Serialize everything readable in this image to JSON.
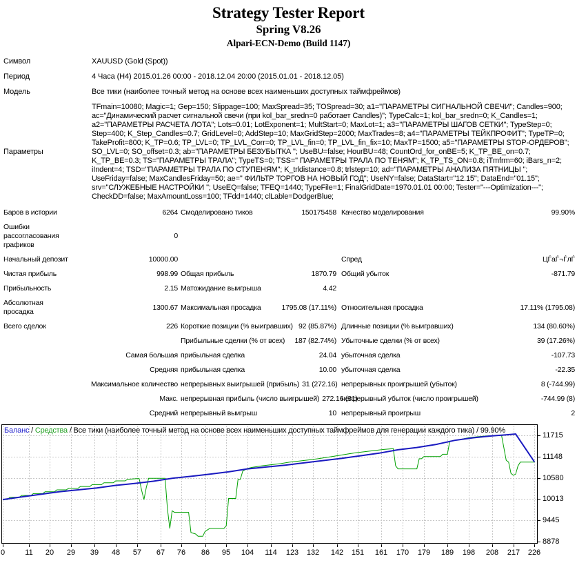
{
  "header": {
    "title": "Strategy Tester Report",
    "subtitle": "Spring V8.26",
    "server": "Alpari-ECN-Demo (Build 1147)"
  },
  "info_rows": [
    {
      "label": "Символ",
      "value": "XAUUSD (Gold (Spot))",
      "tall": false
    },
    {
      "label": "Период",
      "value": "4 Часа (H4) 2015.01.26 00:00 - 2018.12.04 20:00 (2015.01.01 - 2018.12.05)",
      "tall": false
    },
    {
      "label": "Модель",
      "value": "Все тики (наиболее точный метод на основе всех наименьших доступных таймфреймов)",
      "tall": false
    },
    {
      "label": "Параметры",
      "value": "TFmain=10080; Magic=1; Gep=150; Slippage=100; MaxSpread=35; TOSpread=30; a1=\"ПАРАМЕТРЫ СИГНАЛЬНОЙ СВЕЧИ\"; Candles=900; ac=\"Динамический расчет сигнальной свечи (при kol_bar_sredn=0 работает Candles)\"; TypeCalc=1; kol_bar_sredn=0; K_Candles=1; a2=\"ПАРАМЕТРЫ РАСЧЕТА ЛОТА\"; Lots=0.01; LotExponent=1; MultStart=0; MaxLot=1; a3=\"ПАРАМЕТРЫ ШАГОВ СЕТКИ\"; TypeStep=0; Step=400; K_Step_Candles=0.7; GridLevel=0; AddStep=10; MaxGridStep=2000; MaxTrades=8; a4=\"ПАРАМЕТРЫ ТЕЙКПРОФИТ\"; TypeTP=0; TakeProfit=800; K_TP=0.6; TP_LVL=0; TP_LVL_Corr=0; TP_LVL_fin=0; TP_LVL_fin_fix=10; MaxTP=1500; a5=\"ПАРАМЕТРЫ STOP-ОРДЕРОВ\"; SO_LVL=0; SO_offset=0.3; ab=\"ПАРАМЕТРЫ БЕЗУБЫТКА \"; UseBU=false; HourBU=48; CountOrd_for_onBE=5; K_TP_BE_on=0.7; K_TP_BE=0.3; TS=\"ПАРАМЕТРЫ ТРАЛА\"; TypeTS=0; TSS=\" ПАРАМЕТРЫ ТРАЛА ПО ТЕНЯМ\"; K_TP_TS_ON=0.8; iTmfrm=60; iBars_n=2; iIndent=4; TSD=\"ПАРАМЕТРЫ ТРАЛА ПО СТУПЕНЯМ\"; K_trldistance=0.8; trlstep=10; ad=\"ПАРАМЕТРЫ АНАЛИЗА ПЯТНИЦЫ \"; UseFriday=false; MaxCandlesFriday=50; ae=\" ФИЛЬТР ТОРГОВ НА НОВЫЙ ГОД\"; UseNY=false; DataStart=\"12.15\"; DataEnd=\"01.15\"; srv=\"СЛУЖЕБНЫЕ НАСТРОЙКИ \"; UseEQ=false; TFEQ=1440; TypeFile=1; FinalGridDate=1970.01.01 00:00; Tester=\"---Optimization---\"; CheckDD=false; MaxAmountLoss=100; TFdd=1440; clLable=DodgerBlue;",
      "tall": true
    }
  ],
  "stats_rows": [
    {
      "c1": "Баров в истории",
      "c2": "6264",
      "c3": "Смоделировано тиков",
      "c4": "150175458",
      "c5": "Качество моделирования",
      "c6": "99.90%",
      "wide_label": false
    },
    {
      "c1": "Ошибки рассогласования графиков",
      "c2": "0",
      "c3": "",
      "c4": "",
      "c5": "",
      "c6": "",
      "wide_label": false
    },
    {
      "c1": "Начальный депозит",
      "c2": "10000.00",
      "c3": "",
      "c4": "",
      "c5": "Спред",
      "c6": "ЦЃаЃ¬ЃлЃ",
      "wide_label": false
    },
    {
      "c1": "Чистая прибыль",
      "c2": "998.99",
      "c3": "Общая прибыль",
      "c4": "1870.79",
      "c5": "Общий убыток",
      "c6": "-871.79",
      "wide_label": false
    },
    {
      "c1": "Прибыльность",
      "c2": "2.15",
      "c3": "Матожидание выигрыша",
      "c4": "4.42",
      "c5": "",
      "c6": "",
      "wide_label": false
    },
    {
      "c1": "Абсолютная просадка",
      "c2": "1300.67",
      "c3": "Максимальная просадка",
      "c4": "1795.08 (17.11%)",
      "c5": "Относительная просадка",
      "c6": "17.11% (1795.08)",
      "wide_label": false
    },
    {
      "c1": "Всего сделок",
      "c2": "226",
      "c3": "Короткие позиции (% выигравших)",
      "c4": "92 (85.87%)",
      "c5": "Длинные позиции (% выигравших)",
      "c6": "134 (80.60%)",
      "wide_label": false
    },
    {
      "c1": "",
      "c2": "",
      "c3": "Прибыльные сделки (% от всех)",
      "c4": "187 (82.74%)",
      "c5": "Убыточные сделки (% от всех)",
      "c6": "39 (17.26%)",
      "wide_label": false
    },
    {
      "c1": "Самая большая",
      "c2": "",
      "c3": "прибыльная сделка",
      "c4": "24.04",
      "c5": "убыточная сделка",
      "c6": "-107.73",
      "wide_label": true
    },
    {
      "c1": "Средняя",
      "c2": "",
      "c3": "прибыльная сделка",
      "c4": "10.00",
      "c5": "убыточная сделка",
      "c6": "-22.35",
      "wide_label": true
    },
    {
      "c1": "Максимальное количество",
      "c2": "",
      "c3": "непрерывных выигрышей (прибыль)",
      "c4": "31 (272.16)",
      "c5": "непрерывных проигрышей (убыток)",
      "c6": "8 (-744.99)",
      "wide_label": true
    },
    {
      "c1": "Макс.",
      "c2": "",
      "c3": "непрерывная прибыль (число выигрышей)",
      "c4": "272.16 (31)",
      "c5": "непрерывный убыток (число проигрышей)",
      "c6": "-744.99 (8)",
      "wide_label": true
    },
    {
      "c1": "Средний",
      "c2": "",
      "c3": "непрерывный выигрыш",
      "c4": "10",
      "c5": "непрерывный проигрыш",
      "c6": "2",
      "wide_label": true
    }
  ],
  "chart_data": {
    "type": "line",
    "legend": {
      "balance": "Баланс",
      "equity": "Средства",
      "sep": " / ",
      "description": "Все тики (наиболее точный метод на основе всех наименьших доступных таймфреймов для генерации каждого тика) / 99.90%"
    },
    "colors": {
      "balance": "#1A1AC0",
      "equity": "#00A000",
      "grid": "#C8C8C8",
      "legend_balance": "#2323CC",
      "legend_equity": "#22A022"
    },
    "x_ticks": [
      0,
      11,
      20,
      29,
      39,
      48,
      57,
      67,
      76,
      86,
      95,
      104,
      114,
      123,
      132,
      142,
      151,
      161,
      170,
      179,
      189,
      198,
      208,
      217,
      226
    ],
    "y_ticks": [
      11715,
      11148,
      10580,
      10013,
      9445,
      8878
    ],
    "x_range": [
      0,
      226.5
    ],
    "grid": "dashed",
    "legend_position": "top-left",
    "series": [
      {
        "name": "Баланс",
        "width": 2,
        "points": [
          [
            0,
            10000
          ],
          [
            8,
            10070
          ],
          [
            16,
            10140
          ],
          [
            24,
            10210
          ],
          [
            32,
            10260
          ],
          [
            40,
            10310
          ],
          [
            48,
            10380
          ],
          [
            56,
            10430
          ],
          [
            64,
            10490
          ],
          [
            72,
            10570
          ],
          [
            80,
            10620
          ],
          [
            88,
            10680
          ],
          [
            96,
            10740
          ],
          [
            104,
            10820
          ],
          [
            112,
            10870
          ],
          [
            120,
            10920
          ],
          [
            128,
            10980
          ],
          [
            136,
            11040
          ],
          [
            144,
            11100
          ],
          [
            152,
            11170
          ],
          [
            160,
            11240
          ],
          [
            168,
            11330
          ],
          [
            176,
            11390
          ],
          [
            184,
            11470
          ],
          [
            192,
            11580
          ],
          [
            200,
            11650
          ],
          [
            208,
            11700
          ],
          [
            214,
            11730
          ],
          [
            218,
            11750
          ],
          [
            226,
            11005
          ]
        ]
      },
      {
        "name": "Средства",
        "width": 1,
        "points": [
          [
            0,
            10000
          ],
          [
            2,
            10000
          ],
          [
            3,
            10060
          ],
          [
            7,
            10060
          ],
          [
            8,
            10110
          ],
          [
            12,
            10110
          ],
          [
            13,
            10160
          ],
          [
            17,
            10160
          ],
          [
            18,
            10210
          ],
          [
            22,
            10210
          ],
          [
            23,
            10260
          ],
          [
            27,
            10260
          ],
          [
            28,
            10300
          ],
          [
            32,
            10300
          ],
          [
            33,
            10350
          ],
          [
            37,
            10350
          ],
          [
            38,
            10400
          ],
          [
            42,
            10400
          ],
          [
            43,
            10450
          ],
          [
            47,
            10450
          ],
          [
            48,
            10500
          ],
          [
            52,
            10500
          ],
          [
            53,
            10540
          ],
          [
            57,
            10560
          ],
          [
            58,
            10560
          ],
          [
            59,
            10250
          ],
          [
            60,
            10000
          ],
          [
            61,
            10320
          ],
          [
            62,
            10570
          ],
          [
            69,
            10570
          ],
          [
            70,
            9750
          ],
          [
            71,
            9230
          ],
          [
            72,
            9700
          ],
          [
            73,
            9660
          ],
          [
            79,
            9660
          ],
          [
            80,
            9120
          ],
          [
            82,
            9080
          ],
          [
            83,
            9020
          ],
          [
            85,
            9020
          ],
          [
            86,
            9150
          ],
          [
            88,
            9230
          ],
          [
            94,
            9230
          ],
          [
            95,
            9300
          ],
          [
            96,
            10030
          ],
          [
            99,
            10030
          ],
          [
            100,
            10540
          ],
          [
            101,
            10540
          ],
          [
            102,
            10760
          ],
          [
            104,
            10830
          ],
          [
            106,
            10860
          ],
          [
            110,
            10900
          ],
          [
            114,
            10930
          ],
          [
            118,
            10960
          ],
          [
            122,
            11000
          ],
          [
            126,
            11030
          ],
          [
            130,
            11060
          ],
          [
            134,
            11090
          ],
          [
            138,
            11130
          ],
          [
            142,
            11170
          ],
          [
            146,
            11210
          ],
          [
            150,
            11250
          ],
          [
            154,
            11280
          ],
          [
            158,
            11310
          ],
          [
            162,
            11340
          ],
          [
            166,
            11360
          ],
          [
            167,
            10900
          ],
          [
            168,
            10820
          ],
          [
            176,
            10820
          ],
          [
            177,
            11090
          ],
          [
            178,
            11090
          ],
          [
            179,
            11150
          ],
          [
            186,
            11150
          ],
          [
            187,
            11210
          ],
          [
            189,
            11210
          ],
          [
            190,
            11560
          ],
          [
            194,
            11600
          ],
          [
            198,
            11650
          ],
          [
            202,
            11680
          ],
          [
            206,
            11700
          ],
          [
            210,
            11710
          ],
          [
            212,
            11720
          ],
          [
            214,
            11050
          ],
          [
            215,
            11000
          ],
          [
            216,
            10700
          ],
          [
            217,
            10650
          ],
          [
            218,
            10680
          ],
          [
            219,
            10900
          ],
          [
            220,
            11000
          ],
          [
            226,
            11000
          ]
        ]
      }
    ]
  }
}
